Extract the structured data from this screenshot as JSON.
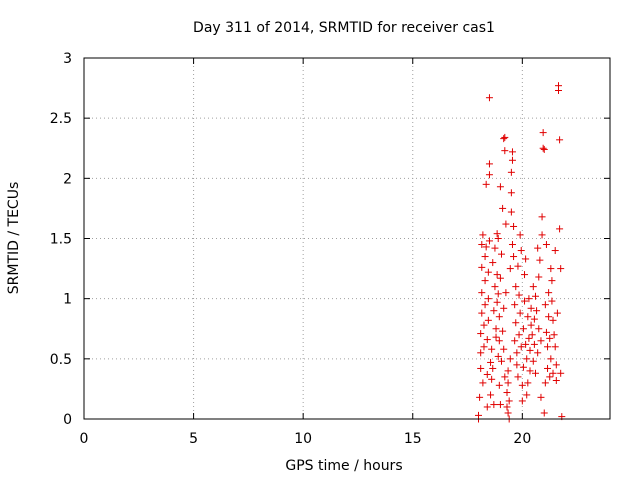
{
  "chart_data": {
    "type": "scatter",
    "title": "Day 311 of 2014, SRMTID for receiver cas1",
    "xlabel": "GPS time / hours",
    "ylabel": "SRMTID / TECUs",
    "xlim": [
      0,
      24
    ],
    "ylim": [
      0,
      3
    ],
    "xticks": [
      0,
      5,
      10,
      15,
      20
    ],
    "yticks": [
      0,
      0.5,
      1,
      1.5,
      2,
      2.5,
      3
    ],
    "grid": true,
    "marker": "+",
    "series_color": "#e00000",
    "series": [
      {
        "name": "SRMTID",
        "points": [
          [
            18.0,
            0.0
          ],
          [
            18.0,
            0.03
          ],
          [
            18.05,
            0.18
          ],
          [
            18.1,
            0.42
          ],
          [
            18.1,
            0.55
          ],
          [
            18.1,
            0.71
          ],
          [
            18.15,
            0.88
          ],
          [
            18.15,
            1.05
          ],
          [
            18.15,
            1.26
          ],
          [
            18.15,
            1.45
          ],
          [
            18.2,
            1.53
          ],
          [
            18.2,
            0.3
          ],
          [
            18.25,
            0.6
          ],
          [
            18.25,
            0.78
          ],
          [
            18.3,
            0.95
          ],
          [
            18.3,
            1.15
          ],
          [
            18.3,
            1.35
          ],
          [
            18.35,
            1.43
          ],
          [
            18.35,
            1.95
          ],
          [
            18.4,
            0.1
          ],
          [
            18.4,
            0.37
          ],
          [
            18.4,
            0.66
          ],
          [
            18.45,
            0.82
          ],
          [
            18.45,
            1.0
          ],
          [
            18.45,
            1.22
          ],
          [
            18.5,
            1.48
          ],
          [
            18.5,
            2.03
          ],
          [
            18.5,
            2.12
          ],
          [
            18.5,
            2.67
          ],
          [
            18.55,
            0.2
          ],
          [
            18.55,
            0.47
          ],
          [
            18.6,
            0.33
          ],
          [
            18.6,
            0.58
          ],
          [
            18.65,
            0.42
          ],
          [
            18.65,
            1.3
          ],
          [
            18.7,
            0.12
          ],
          [
            18.7,
            0.9
          ],
          [
            18.75,
            1.1
          ],
          [
            18.75,
            1.42
          ],
          [
            18.8,
            0.68
          ],
          [
            18.8,
            0.75
          ],
          [
            18.85,
            0.97
          ],
          [
            18.85,
            1.2
          ],
          [
            18.85,
            1.54
          ],
          [
            18.9,
            0.52
          ],
          [
            18.9,
            1.04
          ],
          [
            18.9,
            1.5
          ],
          [
            18.95,
            0.28
          ],
          [
            18.95,
            0.65
          ],
          [
            18.95,
            0.85
          ],
          [
            19.0,
            1.93
          ],
          [
            19.0,
            0.12
          ],
          [
            19.0,
            1.17
          ],
          [
            19.05,
            0.48
          ],
          [
            19.05,
            1.37
          ],
          [
            19.1,
            0.73
          ],
          [
            19.1,
            1.75
          ],
          [
            19.15,
            0.58
          ],
          [
            19.15,
            0.92
          ],
          [
            19.15,
            2.33
          ],
          [
            19.2,
            2.34
          ],
          [
            19.2,
            0.35
          ],
          [
            19.2,
            2.23
          ],
          [
            19.25,
            1.05
          ],
          [
            19.25,
            1.62
          ],
          [
            19.3,
            0.22
          ],
          [
            19.3,
            0.1
          ],
          [
            19.35,
            0.05
          ],
          [
            19.35,
            0.4
          ],
          [
            19.35,
            0.3
          ],
          [
            19.4,
            0.0
          ],
          [
            19.4,
            0.15
          ],
          [
            19.45,
            0.5
          ],
          [
            19.45,
            1.25
          ],
          [
            19.5,
            1.72
          ],
          [
            19.5,
            1.88
          ],
          [
            19.5,
            2.05
          ],
          [
            19.55,
            2.15
          ],
          [
            19.55,
            2.22
          ],
          [
            19.55,
            1.45
          ],
          [
            19.6,
            1.6
          ],
          [
            19.6,
            1.35
          ],
          [
            19.65,
            0.65
          ],
          [
            19.65,
            0.95
          ],
          [
            19.7,
            0.8
          ],
          [
            19.7,
            1.1
          ],
          [
            19.75,
            0.45
          ],
          [
            19.75,
            0.55
          ],
          [
            19.8,
            0.35
          ],
          [
            19.8,
            1.27
          ],
          [
            19.85,
            0.7
          ],
          [
            19.85,
            1.03
          ],
          [
            19.9,
            0.88
          ],
          [
            19.9,
            1.53
          ],
          [
            19.95,
            1.4
          ],
          [
            19.95,
            0.6
          ],
          [
            20.0,
            0.15
          ],
          [
            20.0,
            0.28
          ],
          [
            20.05,
            0.43
          ],
          [
            20.05,
            0.75
          ],
          [
            20.1,
            0.98
          ],
          [
            20.1,
            1.2
          ],
          [
            20.15,
            0.62
          ],
          [
            20.15,
            1.33
          ],
          [
            20.2,
            0.2
          ],
          [
            20.2,
            0.5
          ],
          [
            20.25,
            0.85
          ],
          [
            20.25,
            0.3
          ],
          [
            20.3,
            0.67
          ],
          [
            20.3,
            1.0
          ],
          [
            20.35,
            0.4
          ],
          [
            20.35,
            0.57
          ],
          [
            20.4,
            0.78
          ],
          [
            20.4,
            0.92
          ],
          [
            20.45,
            0.7
          ],
          [
            20.5,
            0.48
          ],
          [
            20.5,
            1.1
          ],
          [
            20.55,
            0.62
          ],
          [
            20.55,
            0.83
          ],
          [
            20.6,
            1.02
          ],
          [
            20.6,
            0.38
          ],
          [
            20.65,
            0.9
          ],
          [
            20.7,
            0.55
          ],
          [
            20.7,
            1.42
          ],
          [
            20.75,
            0.75
          ],
          [
            20.75,
            1.18
          ],
          [
            20.8,
            1.32
          ],
          [
            20.85,
            0.18
          ],
          [
            20.85,
            0.65
          ],
          [
            20.9,
            1.53
          ],
          [
            20.9,
            1.68
          ],
          [
            20.95,
            2.38
          ],
          [
            20.95,
            2.25
          ],
          [
            21.0,
            2.24
          ],
          [
            21.0,
            0.05
          ],
          [
            21.05,
            0.3
          ],
          [
            21.05,
            0.95
          ],
          [
            21.1,
            1.45
          ],
          [
            21.1,
            0.72
          ],
          [
            21.15,
            0.6
          ],
          [
            21.15,
            0.42
          ],
          [
            21.2,
            0.85
          ],
          [
            21.2,
            1.05
          ],
          [
            21.25,
            0.35
          ],
          [
            21.25,
            0.67
          ],
          [
            21.3,
            0.5
          ],
          [
            21.3,
            1.25
          ],
          [
            21.35,
            1.15
          ],
          [
            21.35,
            0.98
          ],
          [
            21.4,
            0.38
          ],
          [
            21.4,
            0.82
          ],
          [
            21.45,
            0.7
          ],
          [
            21.5,
            0.6
          ],
          [
            21.5,
            1.4
          ],
          [
            21.55,
            0.32
          ],
          [
            21.55,
            0.45
          ],
          [
            21.6,
            0.88
          ],
          [
            21.65,
            2.77
          ],
          [
            21.65,
            2.73
          ],
          [
            21.7,
            2.32
          ],
          [
            21.7,
            1.58
          ],
          [
            21.75,
            1.25
          ],
          [
            21.75,
            0.38
          ],
          [
            21.8,
            0.02
          ]
        ]
      }
    ]
  }
}
